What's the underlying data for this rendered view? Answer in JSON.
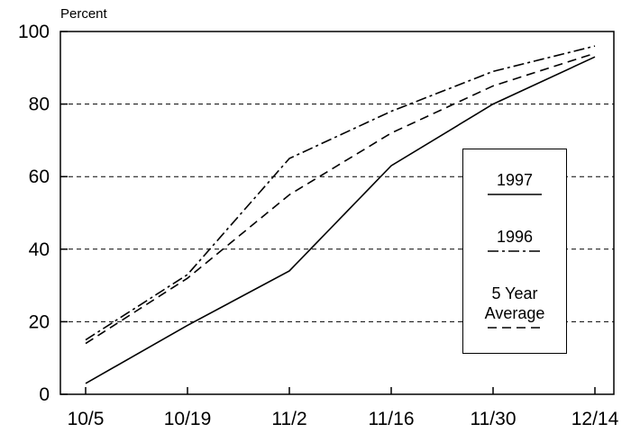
{
  "chart_data": {
    "type": "line",
    "y_label": "Percent",
    "categories": [
      "10/5",
      "10/19",
      "11/2",
      "11/16",
      "11/30",
      "12/14"
    ],
    "series": [
      {
        "name": "1997",
        "color": "#000000",
        "dash": "solid",
        "values": [
          3,
          19,
          34,
          63,
          80,
          93
        ]
      },
      {
        "name": "1996",
        "color": "#000000",
        "dash": "dashdot",
        "values": [
          15,
          33,
          65,
          78,
          89,
          96
        ]
      },
      {
        "name": "5 Year Average",
        "color": "#000000",
        "dash": "dashed",
        "values": [
          14,
          32,
          55,
          72,
          85,
          94
        ]
      }
    ],
    "ylim": [
      0,
      100
    ],
    "yticks": [
      0,
      20,
      40,
      60,
      80,
      100
    ],
    "grid": true
  }
}
